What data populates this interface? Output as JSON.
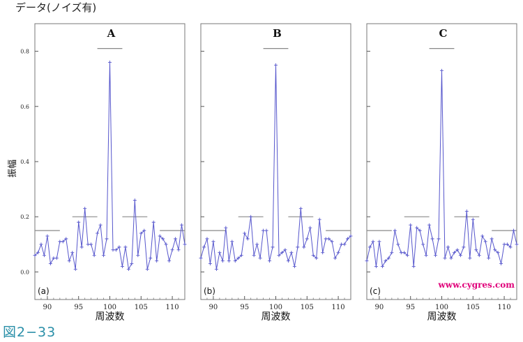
{
  "page": {
    "title": "データ(ノイズ有)",
    "caption": "図2−33",
    "watermark": "www.cygres.com",
    "watermark_color": "#e0007a"
  },
  "colors": {
    "series": "#5555cc",
    "reference": "#888888",
    "frame": "#777777"
  },
  "chart_data": [
    {
      "type": "line",
      "title": "A",
      "panel_tag": "(a)",
      "xlabel": "周波数",
      "ylabel": "振幅",
      "xlim": [
        88,
        112
      ],
      "ylim": [
        -0.1,
        0.9
      ],
      "xticks": [
        90,
        95,
        100,
        105,
        110
      ],
      "yticks": [
        0.0,
        0.2,
        0.4,
        0.6,
        0.8
      ],
      "x": [
        88,
        88.5,
        89,
        89.5,
        90,
        90.5,
        91,
        91.5,
        92,
        92.5,
        93,
        93.5,
        94,
        94.5,
        95,
        95.5,
        96,
        96.5,
        97,
        97.5,
        98,
        98.5,
        99,
        99.5,
        100,
        100.5,
        101,
        101.5,
        102,
        102.5,
        103,
        103.5,
        104,
        104.5,
        105,
        105.5,
        106,
        106.5,
        107,
        107.5,
        108,
        108.5,
        109,
        109.5,
        110,
        110.5,
        111,
        111.5,
        112
      ],
      "y": [
        0.06,
        0.07,
        0.1,
        0.06,
        0.13,
        0.03,
        0.05,
        0.05,
        0.11,
        0.11,
        0.12,
        0.04,
        0.07,
        0.01,
        0.18,
        0.09,
        0.23,
        0.1,
        0.1,
        0.06,
        0.14,
        0.17,
        0.06,
        0.12,
        0.76,
        0.08,
        0.08,
        0.09,
        0.02,
        0.09,
        0.01,
        0.03,
        0.26,
        0.06,
        0.14,
        0.15,
        0.01,
        0.05,
        0.18,
        0.04,
        0.13,
        0.12,
        0.1,
        0.04,
        0.08,
        0.12,
        0.08,
        0.17,
        0.1
      ],
      "reference_lines": [
        {
          "x1": 88,
          "x2": 92,
          "y": 0.15
        },
        {
          "x1": 94,
          "x2": 98,
          "y": 0.2
        },
        {
          "x1": 98,
          "x2": 102,
          "y": 0.81
        },
        {
          "x1": 102,
          "x2": 106,
          "y": 0.2
        },
        {
          "x1": 108,
          "x2": 112,
          "y": 0.15
        }
      ]
    },
    {
      "type": "line",
      "title": "B",
      "panel_tag": "(b)",
      "xlabel": "周波数",
      "xlim": [
        88,
        112
      ],
      "ylim": [
        -0.1,
        0.9
      ],
      "xticks": [
        90,
        95,
        100,
        105,
        110
      ],
      "x": [
        88,
        88.5,
        89,
        89.5,
        90,
        90.5,
        91,
        91.5,
        92,
        92.5,
        93,
        93.5,
        94,
        94.5,
        95,
        95.5,
        96,
        96.5,
        97,
        97.5,
        98,
        98.5,
        99,
        99.5,
        100,
        100.5,
        101,
        101.5,
        102,
        102.5,
        103,
        103.5,
        104,
        104.5,
        105,
        105.5,
        106,
        106.5,
        107,
        107.5,
        108,
        108.5,
        109,
        109.5,
        110,
        110.5,
        111,
        111.5,
        112
      ],
      "y": [
        0.05,
        0.09,
        0.12,
        0.03,
        0.11,
        0.01,
        0.07,
        0.04,
        0.16,
        0.04,
        0.11,
        0.04,
        0.05,
        0.06,
        0.14,
        0.12,
        0.2,
        0.06,
        0.1,
        0.05,
        0.15,
        0.15,
        0.04,
        0.09,
        0.75,
        0.06,
        0.07,
        0.08,
        0.04,
        0.07,
        0.02,
        0.09,
        0.23,
        0.09,
        0.12,
        0.16,
        0.06,
        0.05,
        0.19,
        0.07,
        0.12,
        0.12,
        0.11,
        0.05,
        0.07,
        0.1,
        0.1,
        0.12,
        0.13
      ],
      "reference_lines": [
        {
          "x1": 88,
          "x2": 92,
          "y": 0.15
        },
        {
          "x1": 94,
          "x2": 98,
          "y": 0.2
        },
        {
          "x1": 98,
          "x2": 102,
          "y": 0.81
        },
        {
          "x1": 102,
          "x2": 106,
          "y": 0.2
        },
        {
          "x1": 108,
          "x2": 112,
          "y": 0.15
        }
      ]
    },
    {
      "type": "line",
      "title": "C",
      "panel_tag": "(c)",
      "xlabel": "周波数",
      "xlim": [
        88,
        112
      ],
      "ylim": [
        -0.1,
        0.9
      ],
      "xticks": [
        90,
        95,
        100,
        105,
        110
      ],
      "x": [
        88,
        88.5,
        89,
        89.5,
        90,
        90.5,
        91,
        91.5,
        92,
        92.5,
        93,
        93.5,
        94,
        94.5,
        95,
        95.5,
        96,
        96.5,
        97,
        97.5,
        98,
        98.5,
        99,
        99.5,
        100,
        100.5,
        101,
        101.5,
        102,
        102.5,
        103,
        103.5,
        104,
        104.5,
        105,
        105.5,
        106,
        106.5,
        107,
        107.5,
        108,
        108.5,
        109,
        109.5,
        110,
        110.5,
        111,
        111.5,
        112
      ],
      "y": [
        0.04,
        0.09,
        0.11,
        0.02,
        0.11,
        0.02,
        0.04,
        0.05,
        0.07,
        0.15,
        0.1,
        0.07,
        0.07,
        0.06,
        0.17,
        0.02,
        0.16,
        0.15,
        0.1,
        0.06,
        0.17,
        0.12,
        0.06,
        0.12,
        0.73,
        0.05,
        0.09,
        0.05,
        0.07,
        0.08,
        0.06,
        0.09,
        0.22,
        0.05,
        0.19,
        0.08,
        0.06,
        0.13,
        0.11,
        0.05,
        0.12,
        0.08,
        0.07,
        0.03,
        0.1,
        0.1,
        0.09,
        0.15,
        0.1
      ],
      "reference_lines": [
        {
          "x1": 88,
          "x2": 92,
          "y": 0.15
        },
        {
          "x1": 94,
          "x2": 98,
          "y": 0.2
        },
        {
          "x1": 98,
          "x2": 102,
          "y": 0.81
        },
        {
          "x1": 102,
          "x2": 106,
          "y": 0.2
        },
        {
          "x1": 108,
          "x2": 112,
          "y": 0.15
        }
      ]
    }
  ]
}
